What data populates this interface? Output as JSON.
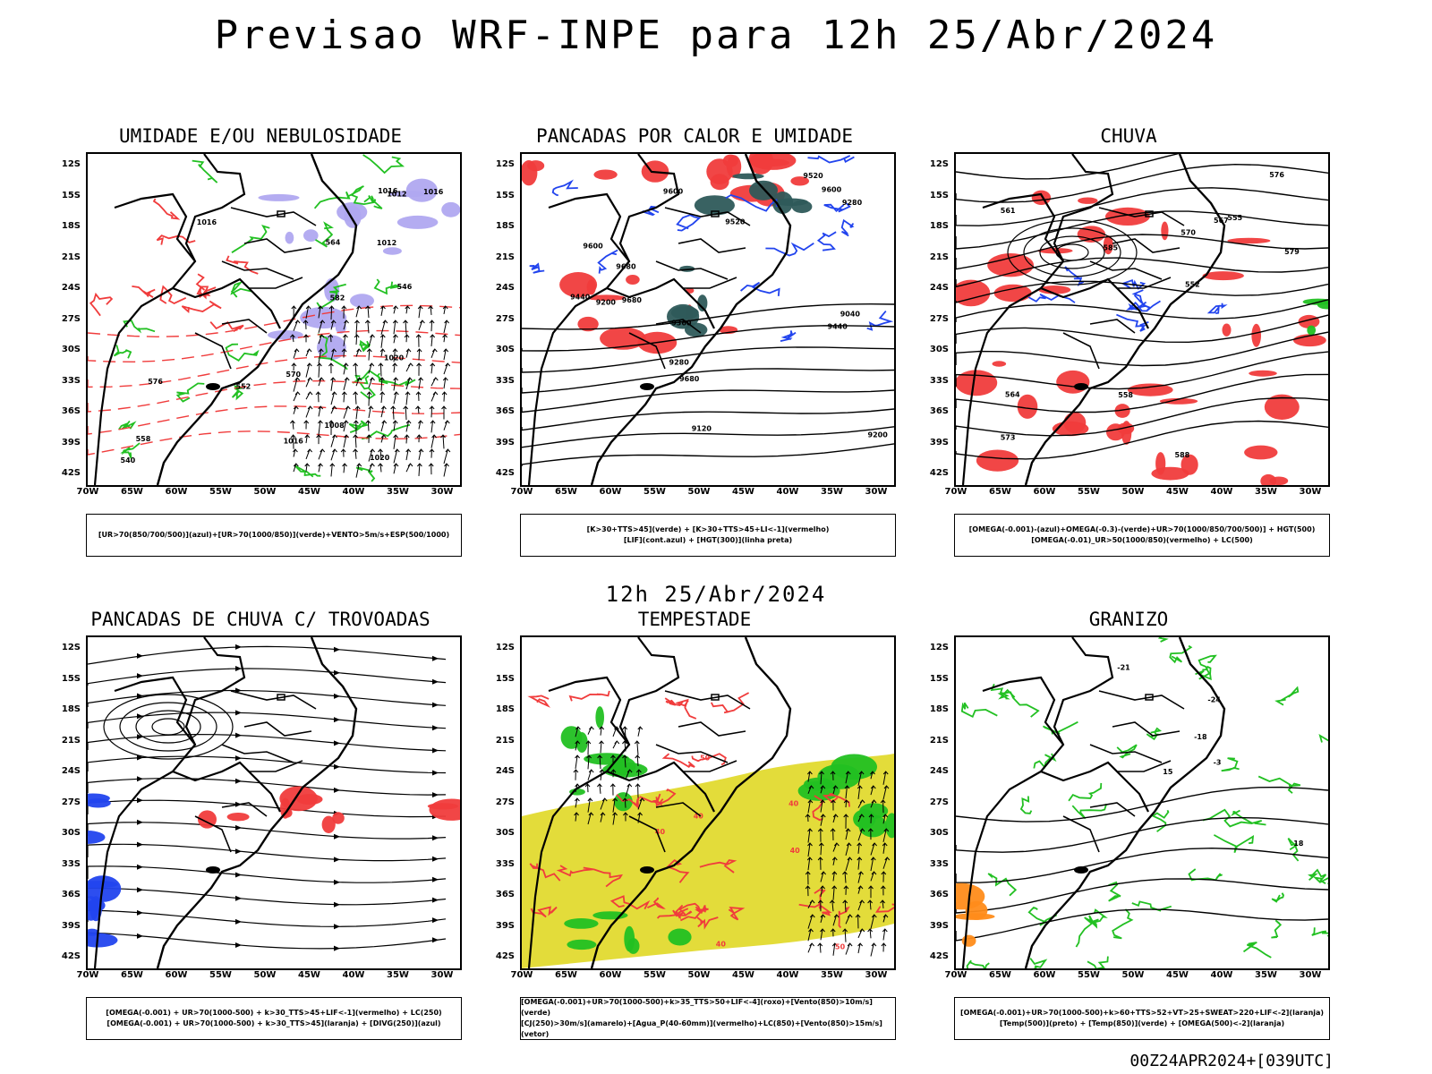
{
  "title": "Previsao WRF-INPE  para 12h 25/Abr/2024",
  "mid_title": "12h 25/Abr/2024",
  "footer": "00Z24APR2024+[039UTC]",
  "axes": {
    "y_ticks": [
      "12S",
      "15S",
      "18S",
      "21S",
      "24S",
      "27S",
      "30S",
      "33S",
      "36S",
      "39S",
      "42S"
    ],
    "x_ticks": [
      "70W",
      "65W",
      "60W",
      "55W",
      "50W",
      "45W",
      "40W",
      "35W",
      "30W"
    ]
  },
  "colors": {
    "red": "#f03c3c",
    "green": "#22c022",
    "blue": "#2244ee",
    "lavender": "#b0a8f0",
    "yellow": "#e3dc3a",
    "darkteal": "#2e5a5a",
    "contour": "#000000"
  },
  "panels": [
    {
      "title": "UMIDADE E/OU NEBULOSIDADE",
      "legend": [
        "[UR>70(850/700/500)](azul)+[UR>70(1000/850)](verde)+VENTO>5m/s+ESP(500/1000)"
      ],
      "contour_labels": [
        "1012",
        "1016",
        "1016",
        "1020",
        "1012",
        "1016",
        "1016",
        "1020",
        "1008",
        "576",
        "570",
        "564",
        "558",
        "552",
        "546",
        "540",
        "582"
      ],
      "layers": [
        "green",
        "red",
        "lavender",
        "contour",
        "vectors"
      ]
    },
    {
      "title": "PANCADAS POR CALOR E UMIDADE",
      "legend": [
        "[K>30+TTS>45](verde) + [K>30+TTS>45+LI<-1](vermelho)",
        "[LIF](cont.azul) + [HGT(300)](linha preta)"
      ],
      "contour_labels": [
        "9680",
        "9680",
        "9680",
        "9600",
        "9600",
        "9600",
        "9520",
        "9520",
        "9440",
        "9440",
        "9360",
        "9280",
        "9280",
        "9200",
        "9200",
        "9120",
        "9040"
      ],
      "layers": [
        "red",
        "darkteal",
        "blue",
        "contour"
      ]
    },
    {
      "title": "CHUVA",
      "legend": [
        "[OMEGA(-0.001)-(azul)+OMEGA(-0.3)-(verde)+UR>70(1000/850/700/500)] + HGT(500)",
        "[OMEGA(-0.01)_UR>50(1000/850)(vermelho) + LC(500)"
      ],
      "contour_labels": [
        "588",
        "585",
        "579",
        "576",
        "573",
        "570",
        "567",
        "564",
        "561",
        "558",
        "555",
        "552"
      ],
      "layers": [
        "red",
        "blue",
        "green",
        "streamlines"
      ]
    },
    {
      "title": "PANCADAS DE CHUVA C/ TROVOADAS",
      "legend": [
        "[OMEGA(-0.001) + UR>70(1000-500) + k>30_TTS>45+LIF<-1](vermelho) + LC(250)",
        "[OMEGA(-0.001) + UR>70(1000-500) + k>30_TTS>45](laranja) + [DIVG(250)](azul)"
      ],
      "contour_labels": [],
      "layers": [
        "red",
        "blue",
        "streamlines"
      ]
    },
    {
      "title": "TEMPESTADE",
      "legend": [
        "[OMEGA(-0.001)+UR>70(1000-500)+k>35_TTS>50+LIF<-4](roxo)+[Vento(850)>10m/s](verde)",
        "[CJ(250)>30m/s](amarelo)+[Agua_P(40-60mm)](vermelho)+LC(850)+[Vento(850)>15m/s](vetor)"
      ],
      "contour_labels": [
        "50",
        "50",
        "40",
        "40",
        "40",
        "40",
        "40"
      ],
      "layers": [
        "yellow",
        "green",
        "red-streamlines",
        "vectors"
      ]
    },
    {
      "title": "GRANIZO",
      "legend": [
        "[OMEGA(-0.001)+UR>70(1000-500)+k>60+TTS>52+VT>25+SWEAT>220+LIF<-2](laranja)",
        "[Temp(500)](preto) + [Temp(850)](verde) + [OMEGA(500)<-2](laranja)"
      ],
      "contour_labels": [
        "-3",
        "-18",
        "-21",
        "-24",
        "15",
        "18"
      ],
      "layers": [
        "green",
        "contour"
      ]
    }
  ]
}
